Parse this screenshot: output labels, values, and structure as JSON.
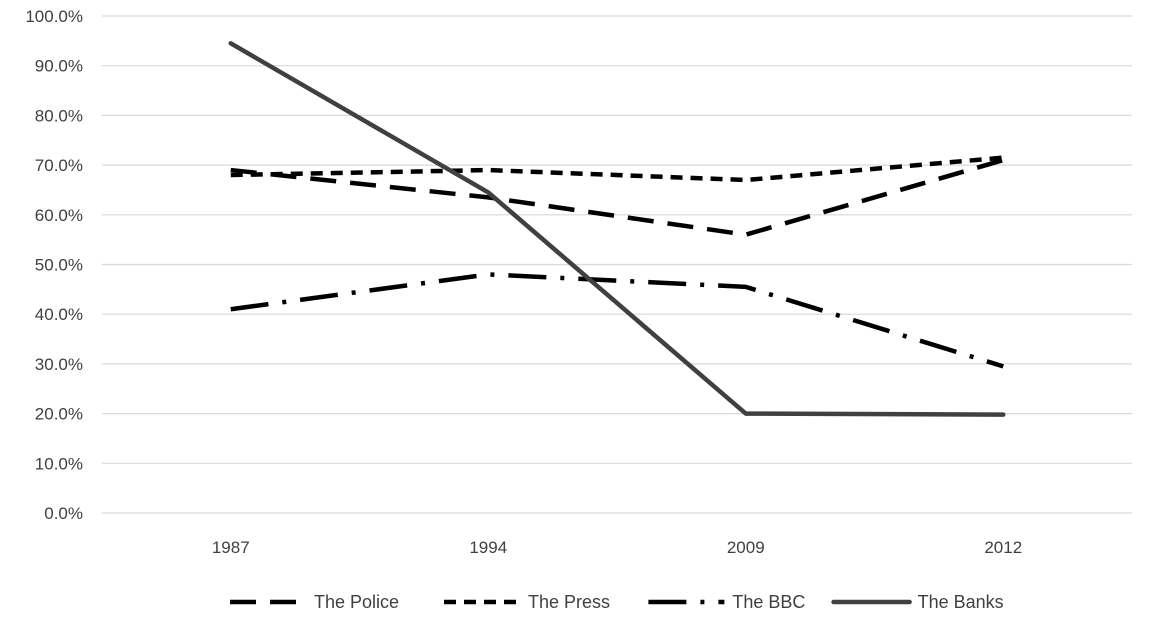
{
  "chart_data": {
    "type": "line",
    "categories": [
      "1987",
      "1994",
      "2009",
      "2012"
    ],
    "y_ticks": [
      "0.0%",
      "10.0%",
      "20.0%",
      "30.0%",
      "40.0%",
      "50.0%",
      "60.0%",
      "70.0%",
      "80.0%",
      "90.0%",
      "100.0%"
    ],
    "ylim": [
      0,
      100
    ],
    "grid": true,
    "legend_position": "bottom",
    "series": [
      {
        "name": "The Police",
        "values": [
          69.0,
          63.5,
          56.0,
          71.0
        ],
        "style": "dash",
        "color": "#000000"
      },
      {
        "name": "The Press",
        "values": [
          68.0,
          69.0,
          67.0,
          71.5
        ],
        "style": "short-dash",
        "color": "#000000"
      },
      {
        "name": "The BBC",
        "values": [
          41.0,
          48.0,
          45.5,
          29.5
        ],
        "style": "long-dash-dot",
        "color": "#000000"
      },
      {
        "name": "The Banks",
        "values": [
          94.5,
          64.5,
          20.0,
          19.8
        ],
        "style": "solid",
        "color": "#404040"
      }
    ]
  }
}
